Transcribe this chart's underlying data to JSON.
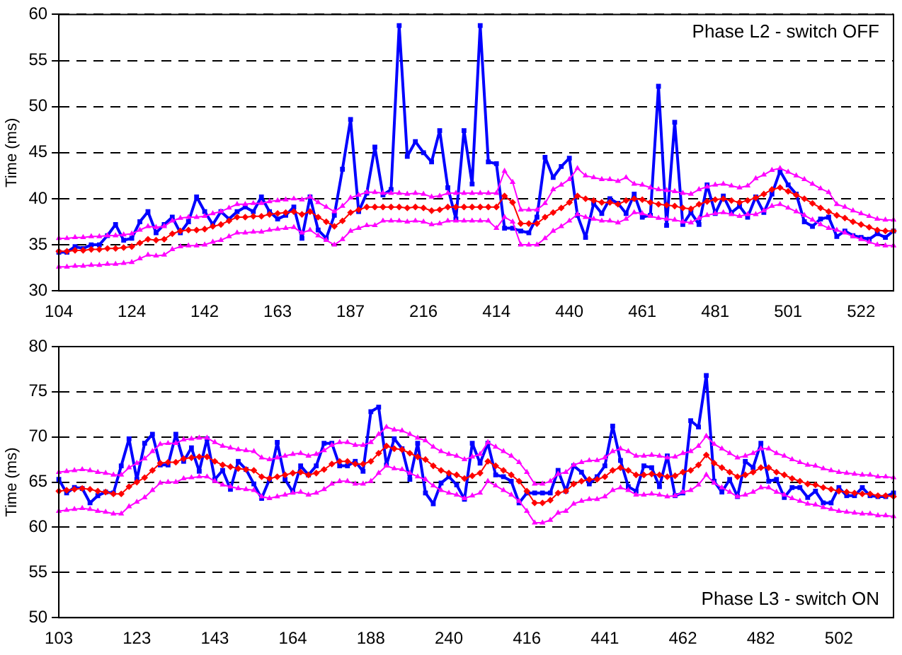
{
  "chart_data": [
    {
      "type": "line",
      "ylabel": "Time (ms)",
      "annotations": [
        "Phase L2 - switch OFF"
      ],
      "grid": "y",
      "legend": false,
      "ylim": [
        30,
        60
      ],
      "yticks": [
        30,
        35,
        40,
        45,
        50,
        55,
        60
      ],
      "categories": [
        "104",
        null,
        null,
        null,
        null,
        null,
        null,
        null,
        null,
        "124",
        null,
        null,
        null,
        null,
        null,
        null,
        null,
        null,
        "142",
        null,
        null,
        null,
        null,
        null,
        null,
        null,
        null,
        "163",
        null,
        null,
        null,
        null,
        null,
        null,
        null,
        null,
        "187",
        null,
        null,
        null,
        null,
        null,
        null,
        null,
        null,
        "216",
        null,
        null,
        null,
        null,
        null,
        null,
        null,
        null,
        "414",
        null,
        null,
        null,
        null,
        null,
        null,
        null,
        null,
        "440",
        null,
        null,
        null,
        null,
        null,
        null,
        null,
        null,
        "461",
        null,
        null,
        null,
        null,
        null,
        null,
        null,
        null,
        "481",
        null,
        null,
        null,
        null,
        null,
        null,
        null,
        null,
        "501",
        null,
        null,
        null,
        null,
        null,
        null,
        null,
        null,
        "522",
        null,
        null,
        null,
        null
      ],
      "series": [
        {
          "color": "#ff00ff",
          "marker": "triangle",
          "values": [
            35.7,
            35.7,
            35.8,
            35.8,
            35.9,
            35.9,
            36.0,
            36.0,
            36.1,
            36.2,
            36.6,
            37.0,
            36.9,
            37.0,
            37.6,
            37.9,
            38.0,
            38.0,
            38.1,
            38.4,
            38.6,
            39.0,
            39.4,
            39.4,
            39.5,
            39.5,
            39.7,
            39.8,
            39.9,
            40.0,
            39.9,
            40.2,
            39.6,
            39.1,
            38.6,
            39.2,
            40.1,
            40.4,
            40.7,
            40.7,
            40.6,
            40.6,
            40.6,
            40.5,
            40.6,
            40.5,
            40.2,
            40.3,
            40.6,
            40.6,
            40.6,
            40.6,
            40.6,
            40.6,
            40.6,
            43.0,
            41.8,
            38.8,
            38.8,
            38.8,
            39.5,
            41.0,
            41.5,
            42.1,
            43.3,
            42.5,
            42.3,
            42.1,
            42.1,
            41.9,
            42.3,
            41.6,
            41.5,
            41.2,
            41.0,
            40.9,
            40.8,
            40.6,
            40.5,
            41.0,
            41.3,
            41.5,
            41.6,
            41.4,
            41.2,
            41.4,
            42.2,
            42.6,
            43.1,
            43.3,
            42.9,
            42.5,
            42.1,
            41.6,
            41.1,
            40.7,
            39.4,
            39.1,
            38.7,
            38.4,
            38.1,
            37.8,
            37.7,
            37.7
          ]
        },
        {
          "color": "#ff00ff",
          "marker": "triangle",
          "values": [
            32.6,
            32.6,
            32.7,
            32.7,
            32.8,
            32.8,
            32.9,
            32.9,
            33.0,
            33.1,
            33.5,
            33.9,
            33.8,
            33.9,
            34.5,
            34.8,
            34.9,
            34.9,
            35.0,
            35.3,
            35.5,
            35.9,
            36.3,
            36.3,
            36.4,
            36.4,
            36.6,
            36.7,
            36.8,
            36.9,
            36.3,
            36.6,
            36.0,
            35.5,
            35.0,
            35.6,
            36.5,
            36.8,
            37.1,
            37.1,
            37.6,
            37.6,
            37.6,
            37.5,
            37.6,
            37.5,
            37.2,
            37.3,
            37.6,
            37.6,
            37.6,
            37.6,
            37.6,
            37.6,
            36.8,
            38.0,
            37.5,
            35.0,
            35.0,
            35.0,
            35.7,
            36.5,
            37.0,
            37.6,
            38.3,
            38.0,
            37.8,
            37.6,
            37.6,
            37.4,
            37.8,
            38.5,
            38.4,
            38.1,
            37.9,
            37.8,
            37.7,
            37.5,
            37.4,
            37.9,
            38.2,
            38.4,
            38.5,
            38.3,
            38.1,
            38.3,
            38.3,
            38.7,
            39.2,
            39.4,
            39.0,
            38.6,
            38.2,
            37.7,
            37.2,
            36.8,
            36.6,
            36.3,
            35.9,
            35.6,
            35.3,
            35.0,
            34.9,
            34.9
          ]
        },
        {
          "color": "#ff0000",
          "marker": "diamond",
          "values": [
            34.3,
            34.3,
            34.4,
            34.4,
            34.5,
            34.5,
            34.6,
            34.6,
            34.7,
            34.8,
            35.2,
            35.6,
            35.5,
            35.6,
            36.2,
            36.5,
            36.6,
            36.6,
            36.7,
            37.0,
            37.2,
            37.6,
            38.0,
            38.0,
            38.1,
            38.1,
            38.3,
            38.4,
            38.5,
            38.6,
            38.3,
            38.6,
            38.0,
            37.5,
            37.0,
            37.6,
            38.5,
            38.8,
            39.1,
            39.1,
            39.1,
            39.1,
            39.1,
            39.0,
            39.1,
            39.0,
            38.7,
            38.8,
            39.1,
            39.1,
            39.1,
            39.1,
            39.1,
            39.1,
            39.1,
            40.3,
            39.6,
            37.3,
            37.3,
            37.3,
            38.0,
            38.5,
            39.0,
            39.6,
            40.3,
            40.0,
            39.8,
            39.6,
            39.6,
            39.4,
            39.8,
            40.0,
            39.9,
            39.6,
            39.4,
            39.3,
            39.2,
            39.0,
            38.9,
            39.4,
            39.7,
            39.9,
            40.0,
            39.8,
            39.6,
            39.8,
            40.1,
            40.5,
            41.0,
            41.2,
            40.8,
            40.4,
            40.0,
            39.5,
            39.0,
            38.6,
            38.2,
            37.9,
            37.5,
            37.2,
            36.9,
            36.6,
            36.5,
            36.5
          ]
        },
        {
          "color": "#0000ff",
          "marker": "square",
          "values": [
            34.2,
            34.2,
            34.8,
            34.6,
            35.0,
            35.0,
            36.0,
            37.2,
            35.5,
            35.7,
            37.5,
            38.6,
            36.3,
            37.2,
            38.0,
            36.3,
            37.5,
            40.2,
            38.6,
            37.2,
            38.6,
            37.8,
            38.6,
            39.1,
            38.6,
            40.2,
            38.6,
            37.8,
            38.2,
            39.1,
            35.7,
            40.2,
            36.6,
            35.7,
            38.2,
            43.2,
            48.6,
            38.6,
            40.6,
            45.6,
            40.4,
            41.0,
            58.8,
            44.6,
            46.2,
            45.0,
            44.0,
            47.4,
            41.2,
            37.8,
            47.4,
            41.6,
            58.8,
            44.0,
            43.8,
            36.8,
            36.8,
            36.5,
            36.3,
            38.0,
            44.5,
            42.3,
            43.5,
            44.4,
            38.2,
            35.8,
            39.5,
            38.4,
            40.0,
            39.5,
            38.4,
            40.5,
            38.0,
            38.2,
            52.2,
            37.1,
            48.3,
            37.2,
            38.5,
            37.2,
            41.5,
            38.4,
            40.3,
            38.5,
            39.2,
            38.0,
            40.2,
            38.5,
            40.5,
            43.0,
            41.5,
            40.5,
            37.5,
            37.0,
            37.8,
            38.0,
            35.9,
            36.5,
            36.0,
            35.8,
            35.6,
            36.2,
            35.8,
            36.5
          ]
        }
      ]
    },
    {
      "type": "line",
      "ylabel": "Time (ms)",
      "annotations": [
        "Phase L3 - switch ON"
      ],
      "grid": "y",
      "legend": false,
      "ylim": [
        50,
        80
      ],
      "yticks": [
        50,
        55,
        60,
        65,
        70,
        75,
        80
      ],
      "categories": [
        "103",
        null,
        null,
        null,
        null,
        null,
        null,
        null,
        null,
        null,
        "123",
        null,
        null,
        null,
        null,
        null,
        null,
        null,
        null,
        null,
        "143",
        null,
        null,
        null,
        null,
        null,
        null,
        null,
        null,
        null,
        "164",
        null,
        null,
        null,
        null,
        null,
        null,
        null,
        null,
        null,
        "188",
        null,
        null,
        null,
        null,
        null,
        null,
        null,
        null,
        null,
        "240",
        null,
        null,
        null,
        null,
        null,
        null,
        null,
        null,
        null,
        "416",
        null,
        null,
        null,
        null,
        null,
        null,
        null,
        null,
        null,
        "441",
        null,
        null,
        null,
        null,
        null,
        null,
        null,
        null,
        null,
        "462",
        null,
        null,
        null,
        null,
        null,
        null,
        null,
        null,
        null,
        "482",
        null,
        null,
        null,
        null,
        null,
        null,
        null,
        null,
        null,
        "502",
        null,
        null,
        null,
        null,
        null,
        null,
        null
      ],
      "series": [
        {
          "color": "#ff00ff",
          "marker": "triangle",
          "values": [
            66.1,
            66.2,
            66.3,
            66.4,
            66.3,
            66.1,
            66.0,
            65.8,
            65.8,
            66.6,
            67.1,
            67.6,
            68.4,
            69.2,
            69.3,
            69.3,
            69.7,
            69.8,
            69.9,
            69.9,
            69.4,
            69.0,
            68.8,
            68.6,
            68.5,
            68.4,
            67.7,
            67.5,
            67.7,
            67.9,
            68.1,
            68.2,
            67.9,
            68.1,
            68.5,
            69.1,
            69.4,
            69.4,
            69.1,
            69.1,
            69.4,
            70.3,
            71.1,
            70.8,
            70.7,
            70.3,
            69.9,
            69.6,
            68.9,
            68.4,
            68.1,
            67.9,
            67.5,
            67.8,
            68.1,
            69.4,
            68.9,
            68.4,
            67.9,
            67.2,
            66.1,
            64.8,
            64.8,
            65.1,
            65.9,
            66.1,
            66.9,
            67.2,
            67.4,
            67.4,
            67.7,
            68.4,
            68.7,
            68.4,
            67.9,
            67.9,
            68.0,
            67.9,
            67.7,
            67.8,
            68.2,
            68.4,
            69.0,
            70.1,
            69.2,
            68.7,
            68.2,
            67.7,
            67.9,
            68.2,
            68.7,
            68.7,
            68.2,
            67.9,
            67.5,
            67.2,
            66.9,
            66.8,
            66.5,
            66.3,
            66.1,
            66.0,
            65.9,
            65.8,
            65.8,
            65.6,
            65.6,
            65.5
          ]
        },
        {
          "color": "#ff00ff",
          "marker": "triangle",
          "values": [
            61.8,
            61.9,
            62.0,
            62.1,
            62.0,
            61.8,
            61.7,
            61.5,
            61.5,
            62.3,
            62.8,
            63.3,
            64.1,
            64.9,
            65.0,
            65.0,
            65.4,
            65.5,
            65.6,
            65.6,
            65.1,
            64.7,
            64.5,
            64.3,
            64.2,
            64.1,
            63.4,
            63.2,
            63.4,
            63.6,
            63.8,
            63.9,
            63.6,
            63.8,
            64.2,
            64.8,
            65.1,
            65.1,
            64.8,
            64.8,
            65.1,
            66.0,
            66.8,
            66.5,
            66.4,
            66.0,
            65.6,
            65.3,
            64.6,
            64.1,
            63.8,
            63.6,
            63.2,
            63.5,
            63.8,
            65.1,
            64.6,
            64.1,
            63.6,
            62.9,
            61.8,
            60.5,
            60.5,
            60.8,
            61.6,
            61.8,
            62.6,
            62.9,
            63.1,
            63.1,
            63.4,
            64.1,
            64.4,
            64.1,
            63.6,
            63.6,
            63.7,
            63.6,
            63.4,
            63.5,
            63.9,
            64.1,
            64.7,
            65.8,
            64.9,
            64.4,
            63.9,
            63.4,
            63.6,
            63.9,
            64.4,
            64.4,
            63.9,
            63.6,
            63.2,
            62.9,
            62.6,
            62.5,
            62.2,
            62.0,
            61.8,
            61.7,
            61.6,
            61.5,
            61.5,
            61.3,
            61.3,
            61.2
          ]
        },
        {
          "color": "#ff0000",
          "marker": "diamond",
          "values": [
            64.0,
            64.1,
            64.2,
            64.3,
            64.2,
            64.0,
            63.9,
            63.7,
            63.7,
            64.5,
            65.0,
            65.5,
            66.3,
            67.1,
            67.2,
            67.2,
            67.6,
            67.7,
            67.8,
            67.8,
            67.3,
            66.9,
            66.7,
            66.5,
            66.4,
            66.3,
            65.6,
            65.4,
            65.6,
            65.8,
            66.0,
            66.1,
            65.8,
            66.0,
            66.4,
            67.0,
            67.3,
            67.3,
            67.0,
            67.0,
            67.3,
            68.2,
            69.0,
            68.7,
            68.6,
            68.2,
            67.8,
            67.5,
            66.8,
            66.3,
            66.0,
            65.8,
            65.4,
            65.7,
            66.0,
            67.3,
            66.8,
            66.3,
            65.8,
            65.1,
            64.0,
            62.7,
            62.7,
            63.0,
            63.8,
            64.0,
            64.8,
            65.1,
            65.3,
            65.3,
            65.6,
            66.3,
            66.6,
            66.3,
            65.8,
            65.8,
            65.9,
            65.8,
            65.6,
            65.7,
            66.1,
            66.3,
            66.9,
            68.0,
            67.1,
            66.6,
            66.1,
            65.6,
            65.8,
            66.1,
            66.6,
            66.6,
            66.1,
            65.8,
            65.4,
            65.1,
            64.8,
            64.7,
            64.4,
            64.2,
            64.0,
            63.9,
            63.8,
            63.7,
            63.7,
            63.5,
            63.5,
            63.4
          ]
        },
        {
          "color": "#0000ff",
          "marker": "square",
          "values": [
            65.3,
            63.8,
            64.4,
            64.3,
            62.7,
            63.5,
            63.9,
            63.8,
            66.8,
            69.8,
            65.3,
            69.3,
            70.3,
            66.9,
            66.9,
            70.3,
            67.3,
            68.8,
            66.2,
            69.8,
            65.3,
            66.3,
            64.2,
            67.3,
            66.4,
            64.8,
            63.2,
            65.3,
            69.4,
            65.3,
            63.9,
            66.8,
            65.8,
            66.8,
            69.3,
            69.3,
            66.8,
            66.8,
            67.3,
            66.2,
            72.8,
            73.3,
            66.9,
            69.8,
            68.7,
            65.3,
            69.3,
            63.8,
            62.6,
            64.9,
            65.6,
            64.7,
            63.1,
            69.3,
            67.1,
            69.3,
            65.8,
            65.6,
            65.1,
            62.7,
            63.8,
            63.8,
            63.8,
            63.8,
            66.3,
            64.0,
            66.8,
            66.1,
            64.8,
            65.6,
            66.8,
            71.2,
            67.4,
            64.5,
            64.0,
            66.8,
            66.6,
            64.5,
            67.9,
            63.5,
            63.8,
            71.8,
            71.1,
            76.8,
            65.1,
            63.9,
            65.3,
            63.4,
            67.3,
            66.6,
            69.3,
            65.1,
            65.3,
            63.3,
            64.4,
            64.4,
            63.3,
            64.0,
            62.7,
            62.7,
            64.4,
            63.5,
            63.5,
            64.4,
            63.5,
            63.4,
            63.4,
            63.8
          ]
        }
      ]
    }
  ]
}
